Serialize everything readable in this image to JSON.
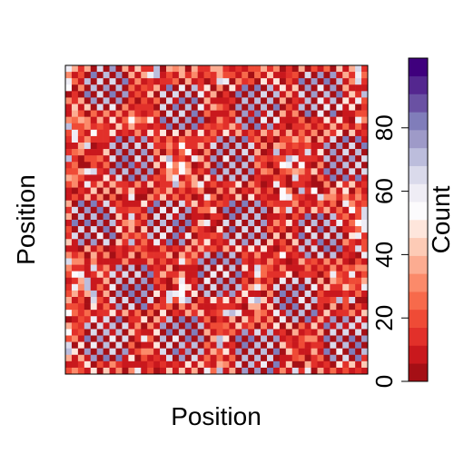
{
  "chart_data": {
    "type": "heatmap",
    "title": "",
    "xlabel": "Position",
    "ylabel": "Position",
    "grid_size": 48,
    "x_ticks_shown": false,
    "y_ticks_shown": false,
    "colorbar": {
      "label": "Count",
      "range": [
        0,
        102
      ],
      "ticks": [
        0,
        20,
        40,
        60,
        80
      ],
      "tick_labels": [
        "0",
        "20",
        "40",
        "60",
        "80"
      ],
      "bins": 18,
      "palette": [
        "#a50f15",
        "#c9181d",
        "#e2302a",
        "#ef4b36",
        "#f76a4b",
        "#fb8a6a",
        "#fcac91",
        "#fdcbb6",
        "#fee6dc",
        "#fcfbfd",
        "#efedf5",
        "#dadaeb",
        "#bcbddc",
        "#9e9ac8",
        "#807dba",
        "#6a51a3",
        "#54278f",
        "#3f007d"
      ]
    },
    "pattern_note_free": true
  }
}
